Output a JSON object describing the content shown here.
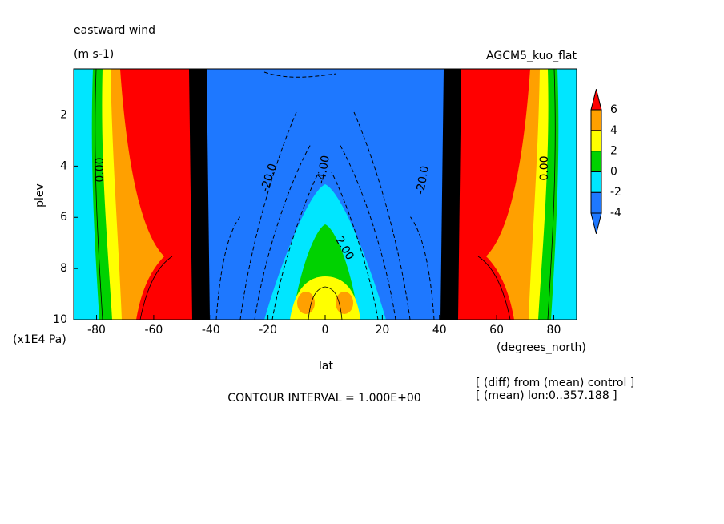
{
  "chart_data": {
    "type": "contour",
    "title": "eastward wind",
    "units": "(m s-1)",
    "dataset": "AGCM5_kuo_flat",
    "x_label": "lat",
    "x_units": "(degrees_north)",
    "y_label": "plev",
    "y_units": "(x1E4 Pa)",
    "xlim": [
      -88,
      88
    ],
    "xticks": [
      -80,
      -60,
      -40,
      -20,
      0,
      20,
      40,
      60,
      80
    ],
    "ylim": [
      0.2,
      10
    ],
    "yticks": [
      2,
      4,
      6,
      8,
      10
    ],
    "y_reversed": true,
    "colorbar": {
      "levels": [
        -4,
        -2,
        0,
        2,
        4,
        6
      ],
      "colors": [
        "#1e78ff",
        "#1e78ff",
        "#00e6ff",
        "#00d200",
        "#ffff00",
        "#ffa000",
        "#ff0000"
      ]
    },
    "contour_labels": [
      "0.00",
      "-20.0",
      "-4.00",
      "2.00",
      "-20.0",
      "0.00"
    ],
    "contour_interval": "CONTOUR INTERVAL = 1.000E+00",
    "notes": [
      "[ (diff) from (mean) control ]",
      "[ (mean) lon:0..357.188 ]"
    ]
  }
}
